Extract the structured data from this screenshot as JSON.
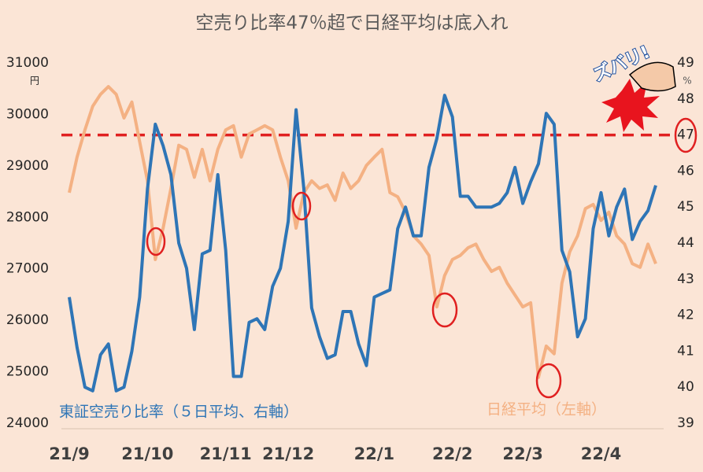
{
  "chart_data": {
    "type": "line",
    "title": "空売り比率47％超で日経平均は底入れ",
    "categories": [
      "21/9",
      null,
      null,
      null,
      null,
      null,
      null,
      null,
      null,
      null,
      "21/10",
      null,
      null,
      null,
      null,
      null,
      null,
      null,
      null,
      null,
      "21/11",
      null,
      null,
      null,
      null,
      null,
      null,
      null,
      "21/12",
      null,
      null,
      null,
      null,
      null,
      null,
      null,
      null,
      null,
      null,
      "22/1",
      null,
      null,
      null,
      null,
      null,
      null,
      null,
      null,
      null,
      "22/2",
      null,
      null,
      null,
      null,
      null,
      null,
      null,
      null,
      "22/3",
      null,
      null,
      null,
      null,
      null,
      null,
      null,
      null,
      null,
      "22/4",
      null,
      null,
      null,
      null,
      null,
      null,
      null
    ],
    "series": [
      {
        "name": "日経平均（左軸）",
        "color": "#f4b183",
        "axis": "y",
        "values": [
          28480,
          29170,
          29700,
          30160,
          30390,
          30540,
          30390,
          29930,
          30240,
          29470,
          28710,
          27180,
          27790,
          28560,
          29400,
          29320,
          28780,
          29320,
          28710,
          29320,
          29700,
          29780,
          29170,
          29620,
          29700,
          29780,
          29700,
          29170,
          28710,
          27790,
          28480,
          28710,
          28560,
          28630,
          28330,
          28860,
          28560,
          28710,
          29010,
          29170,
          29320,
          28480,
          28400,
          28100,
          27640,
          27480,
          27260,
          26260,
          26870,
          27180,
          27260,
          27410,
          27480,
          27180,
          26950,
          27030,
          26720,
          26490,
          26260,
          26340,
          24890,
          25500,
          25350,
          26720,
          27330,
          27640,
          28170,
          28250,
          27940,
          28100,
          27640,
          27480,
          27100,
          27030,
          27480,
          27100
        ]
      },
      {
        "name": "東証空売り比率（５日平均、右軸）",
        "color": "#2e75b6",
        "axis": "y2",
        "values": [
          42.5,
          41.1,
          40.0,
          39.9,
          40.9,
          41.2,
          39.9,
          40.0,
          41.0,
          42.5,
          45.5,
          47.3,
          46.7,
          45.9,
          44.0,
          43.3,
          41.6,
          43.7,
          43.8,
          45.9,
          43.8,
          40.3,
          40.3,
          41.8,
          41.9,
          41.6,
          42.8,
          43.3,
          44.6,
          47.7,
          45.5,
          42.2,
          41.4,
          40.8,
          40.9,
          42.1,
          42.1,
          41.2,
          40.6,
          42.5,
          42.6,
          42.7,
          44.4,
          45.0,
          44.2,
          44.2,
          46.1,
          46.9,
          48.1,
          47.5,
          45.3,
          45.3,
          45.0,
          45.0,
          45.0,
          45.1,
          45.4,
          46.1,
          45.1,
          45.7,
          46.2,
          47.6,
          47.3,
          43.8,
          43.2,
          41.4,
          41.9,
          44.4,
          45.4,
          44.2,
          45.0,
          45.5,
          44.1,
          44.6,
          44.9,
          45.6
        ]
      }
    ],
    "ylim": [
      24000,
      31000
    ],
    "yticks": [
      24000,
      25000,
      26000,
      27000,
      28000,
      29000,
      30000,
      31000
    ],
    "y_unit": "円",
    "y2lim": [
      39,
      49
    ],
    "y2ticks": [
      39,
      40,
      41,
      42,
      43,
      44,
      45,
      46,
      47,
      48,
      49
    ],
    "y2_unit": "%",
    "reference_line": {
      "value": 47,
      "axis": "y2",
      "color": "#e02020"
    },
    "sticker": "ズバリ!"
  }
}
